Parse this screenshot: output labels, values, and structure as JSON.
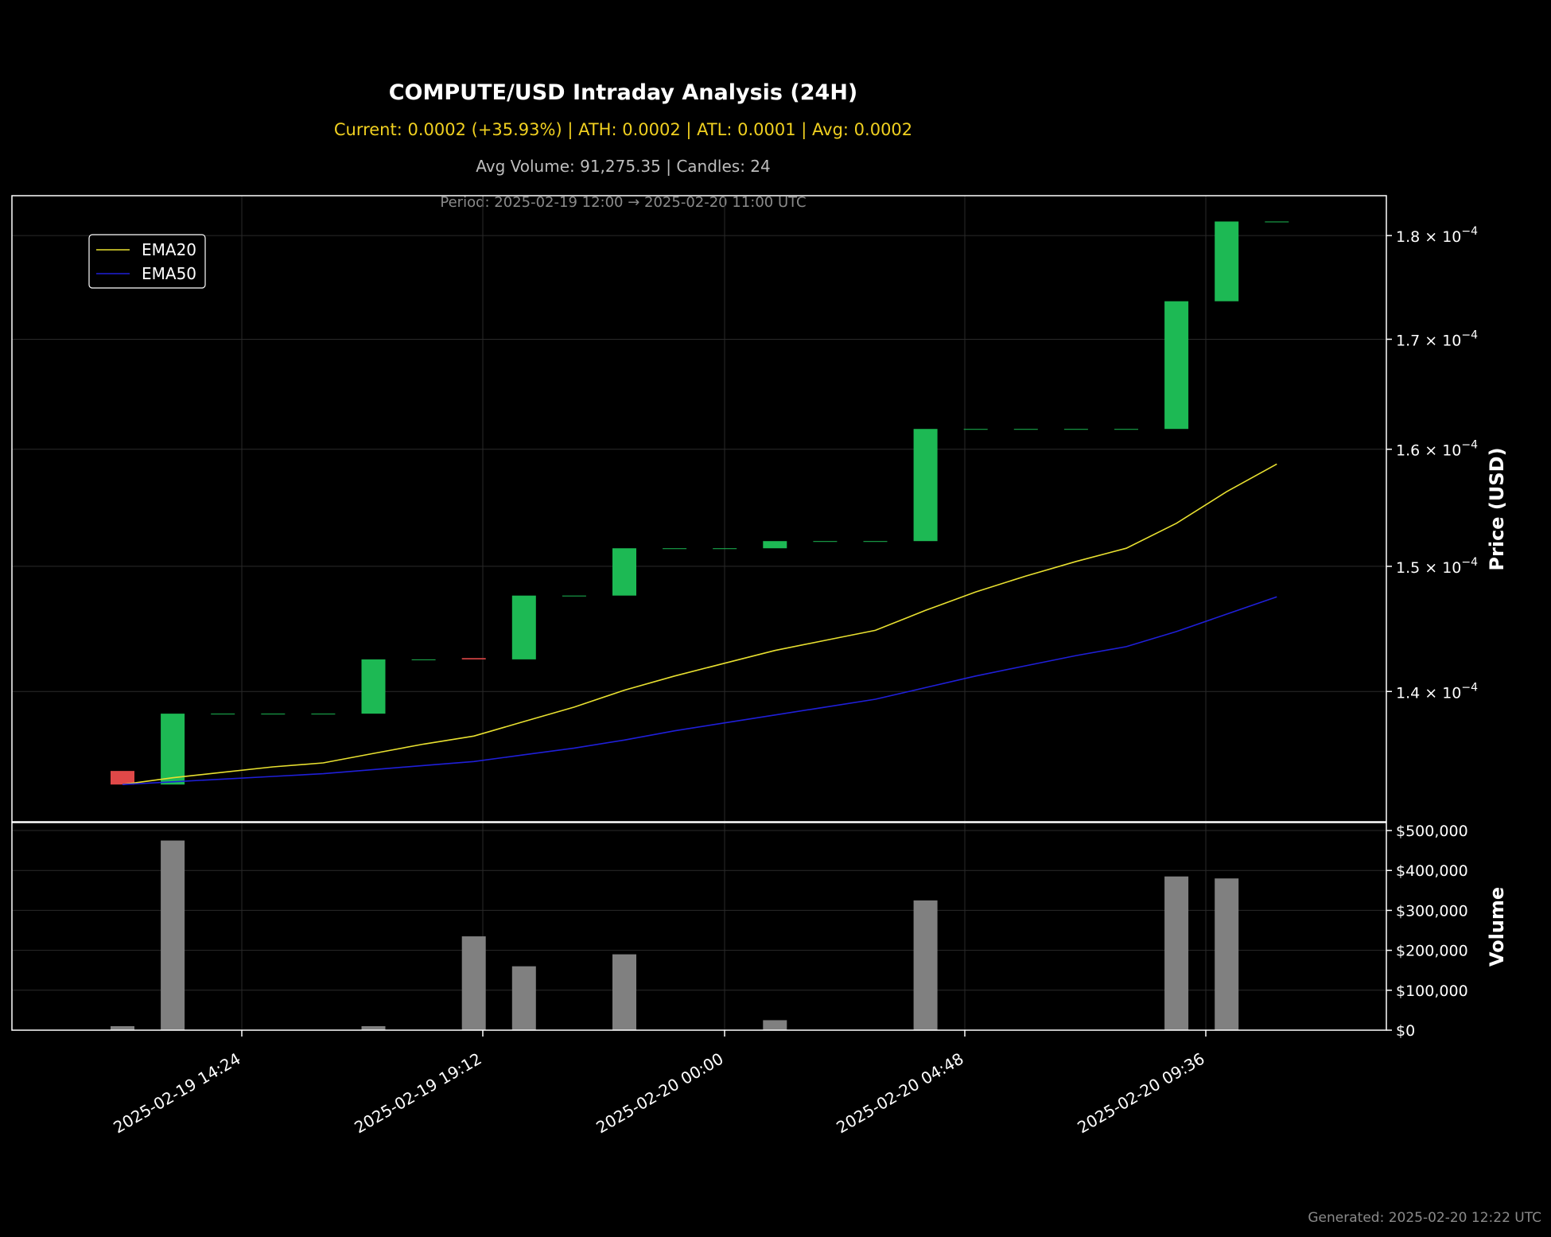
{
  "header": {
    "title": "COMPUTE/USD Intraday Analysis (24H)",
    "stats": "Current: 0.0002 (+35.93%) | ATH: 0.0002 | ATL: 0.0001 | Avg: 0.0002",
    "volume_info": "Avg Volume: 91,275.35 | Candles: 24",
    "period": "Period: 2025-02-19 12:00 → 2025-02-20 11:00 UTC"
  },
  "footer": {
    "generated": "Generated: 2025-02-20 12:22 UTC"
  },
  "colors": {
    "background": "#000000",
    "up": "#1db954",
    "down": "#e04848",
    "ema20": "#e8e030",
    "ema50": "#1f1fd8",
    "volume": "#808080",
    "stats_text": "#f0d020"
  },
  "chart_data": [
    {
      "type": "candlestick",
      "ylabel": "Price (USD)",
      "yscale": "log",
      "ylim": [
        0.0001303,
        0.000184
      ],
      "yticks": [
        0.00014,
        0.00015,
        0.00016,
        0.00017,
        0.00018
      ],
      "ytick_labels": [
        "1.4 × 10",
        "1.5 × 10",
        "1.6 × 10",
        "1.7 × 10",
        "1.8 × 10"
      ],
      "ytick_exponent": "−4",
      "xticks": [
        "2025-02-19 14:24",
        "2025-02-19 19:12",
        "2025-02-20 00:00",
        "2025-02-20 04:48",
        "2025-02-20 09:36"
      ],
      "legend": {
        "position": "top-left",
        "entries": [
          "EMA20",
          "EMA50"
        ]
      },
      "grid": true,
      "candles": [
        {
          "time": "2025-02-19 12:00",
          "open": 0.000134,
          "close": 0.000133
        },
        {
          "time": "2025-02-19 13:00",
          "open": 0.000133,
          "close": 0.0001383
        },
        {
          "time": "2025-02-19 14:00",
          "open": 0.0001383,
          "close": 0.0001383
        },
        {
          "time": "2025-02-19 15:00",
          "open": 0.0001383,
          "close": 0.0001383
        },
        {
          "time": "2025-02-19 16:00",
          "open": 0.0001383,
          "close": 0.0001383
        },
        {
          "time": "2025-02-19 17:00",
          "open": 0.0001383,
          "close": 0.0001425
        },
        {
          "time": "2025-02-19 18:00",
          "open": 0.0001425,
          "close": 0.0001425
        },
        {
          "time": "2025-02-19 19:00",
          "open": 0.0001426,
          "close": 0.0001425
        },
        {
          "time": "2025-02-19 20:00",
          "open": 0.0001425,
          "close": 0.0001476
        },
        {
          "time": "2025-02-19 21:00",
          "open": 0.0001476,
          "close": 0.0001476
        },
        {
          "time": "2025-02-19 22:00",
          "open": 0.0001476,
          "close": 0.0001515
        },
        {
          "time": "2025-02-19 23:00",
          "open": 0.0001515,
          "close": 0.0001515
        },
        {
          "time": "2025-02-20 00:00",
          "open": 0.0001515,
          "close": 0.0001515
        },
        {
          "time": "2025-02-20 01:00",
          "open": 0.0001515,
          "close": 0.0001521
        },
        {
          "time": "2025-02-20 02:00",
          "open": 0.0001521,
          "close": 0.0001521
        },
        {
          "time": "2025-02-20 03:00",
          "open": 0.0001521,
          "close": 0.0001521
        },
        {
          "time": "2025-02-20 04:00",
          "open": 0.0001521,
          "close": 0.0001618
        },
        {
          "time": "2025-02-20 05:00",
          "open": 0.0001618,
          "close": 0.0001618
        },
        {
          "time": "2025-02-20 06:00",
          "open": 0.0001618,
          "close": 0.0001618
        },
        {
          "time": "2025-02-20 07:00",
          "open": 0.0001618,
          "close": 0.0001618
        },
        {
          "time": "2025-02-20 08:00",
          "open": 0.0001618,
          "close": 0.0001618
        },
        {
          "time": "2025-02-20 09:00",
          "open": 0.0001618,
          "close": 0.0001736
        },
        {
          "time": "2025-02-20 10:00",
          "open": 0.0001736,
          "close": 0.0001814
        },
        {
          "time": "2025-02-20 11:00",
          "open": 0.0001814,
          "close": 0.0001814
        }
      ],
      "series": [
        {
          "name": "EMA20",
          "values": [
            0.000133,
            0.0001335,
            0.0001339,
            0.0001343,
            0.0001346,
            0.0001353,
            0.000136,
            0.0001366,
            0.0001377,
            0.0001388,
            0.0001401,
            0.0001412,
            0.0001422,
            0.0001432,
            0.000144,
            0.0001448,
            0.0001464,
            0.0001479,
            0.0001492,
            0.0001504,
            0.0001515,
            0.0001536,
            0.0001563,
            0.0001587
          ]
        },
        {
          "name": "EMA50",
          "values": [
            0.000133,
            0.0001332,
            0.0001334,
            0.0001336,
            0.0001338,
            0.0001341,
            0.0001344,
            0.0001347,
            0.0001352,
            0.0001357,
            0.0001363,
            0.000137,
            0.0001376,
            0.0001382,
            0.0001388,
            0.0001394,
            0.0001403,
            0.0001412,
            0.000142,
            0.0001428,
            0.0001435,
            0.0001447,
            0.0001461,
            0.0001475
          ]
        }
      ]
    },
    {
      "type": "bar",
      "ylabel": "Volume",
      "ylim": [
        0,
        520000
      ],
      "yticks": [
        0,
        100000,
        200000,
        300000,
        400000,
        500000
      ],
      "ytick_labels": [
        "$0",
        "$100,000",
        "$200,000",
        "$300,000",
        "$400,000",
        "$500,000"
      ],
      "values": [
        10000,
        475000,
        0,
        0,
        0,
        10000,
        0,
        235000,
        160000,
        0,
        190000,
        0,
        0,
        25000,
        0,
        0,
        325000,
        0,
        0,
        0,
        0,
        385000,
        380000,
        0
      ]
    }
  ]
}
